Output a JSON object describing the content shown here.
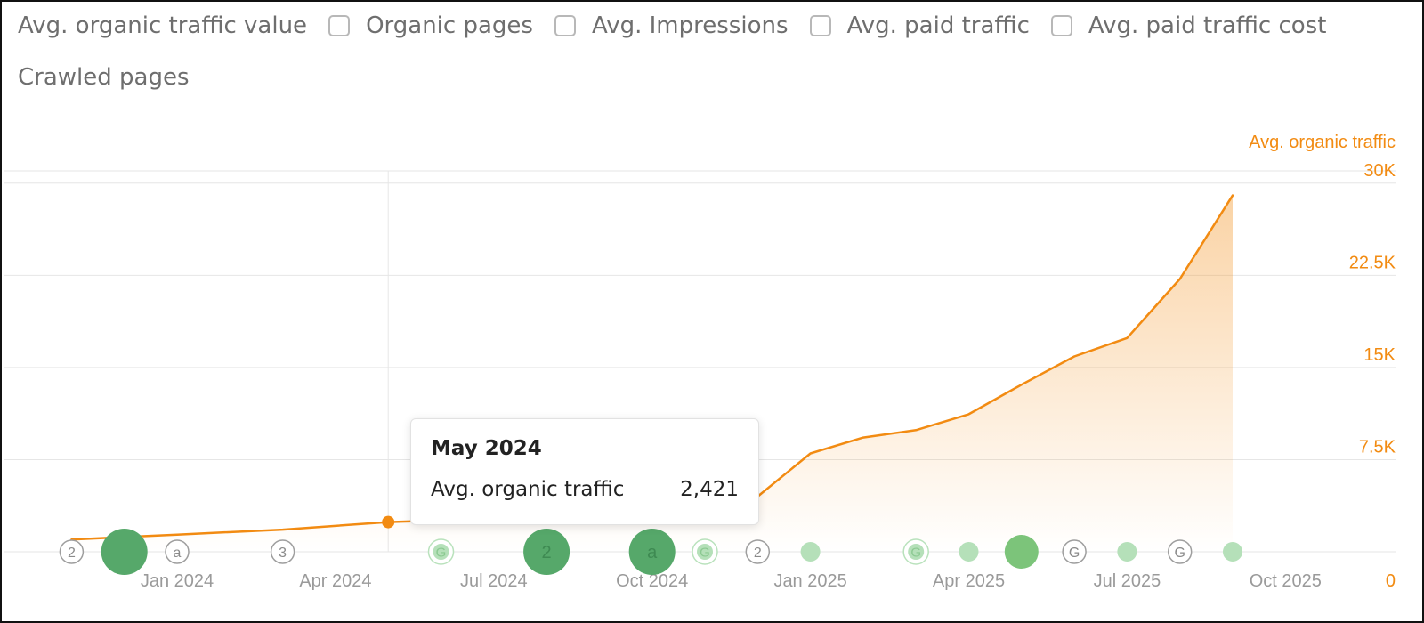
{
  "toggles": [
    {
      "label": "Avg. organic traffic value",
      "checked": null
    },
    {
      "label": "Organic pages",
      "checked": false
    },
    {
      "label": "Avg. Impressions",
      "checked": false
    },
    {
      "label": "Avg. paid traffic",
      "checked": false
    },
    {
      "label": "Avg. paid traffic cost",
      "checked": false
    },
    {
      "label": "Crawled pages",
      "checked": null
    }
  ],
  "colors": {
    "line": "#f28b12",
    "axis_text": "#f28b12",
    "tick_text": "#9a9a9a",
    "grid": "#e6e6e6",
    "marker_dark": "#56a86a",
    "marker_light": "#b5e0b9",
    "marker_mid": "#7cc47a"
  },
  "tooltip": {
    "title": "May 2024",
    "label": "Avg. organic traffic",
    "value": "2,421"
  },
  "chart_data": {
    "type": "area",
    "title": "",
    "ylabel": "Avg. organic traffic",
    "y_axis_position": "right",
    "ylim": [
      0,
      31000
    ],
    "yticks": [
      {
        "value": 0,
        "label": "0"
      },
      {
        "value": 7500,
        "label": "7.5K"
      },
      {
        "value": 15000,
        "label": "15K"
      },
      {
        "value": 22500,
        "label": "22.5K"
      },
      {
        "value": 30000,
        "label": "30K"
      }
    ],
    "xticks": [
      {
        "date": "2024-01",
        "label": "Jan 2024"
      },
      {
        "date": "2024-04",
        "label": "Apr 2024"
      },
      {
        "date": "2024-07",
        "label": "Jul 2024"
      },
      {
        "date": "2024-10",
        "label": "Oct 2024"
      },
      {
        "date": "2025-01",
        "label": "Jan 2025"
      },
      {
        "date": "2025-04",
        "label": "Apr 2025"
      },
      {
        "date": "2025-07",
        "label": "Jul 2025"
      },
      {
        "date": "2025-10",
        "label": "Oct 2025"
      }
    ],
    "grid": true,
    "series": [
      {
        "name": "Avg. organic traffic",
        "points": [
          {
            "date": "2023-11",
            "y": 1000
          },
          {
            "date": "2024-01",
            "y": 1400
          },
          {
            "date": "2024-03",
            "y": 1800
          },
          {
            "date": "2024-05",
            "y": 2421
          },
          {
            "date": "2024-07",
            "y": 2700
          },
          {
            "date": "2024-09",
            "y": 2900
          },
          {
            "date": "2024-11",
            "y": 3200
          },
          {
            "date": "2024-12",
            "y": 4500
          },
          {
            "date": "2025-01",
            "y": 8000
          },
          {
            "date": "2025-02",
            "y": 9300
          },
          {
            "date": "2025-03",
            "y": 9900
          },
          {
            "date": "2025-04",
            "y": 11200
          },
          {
            "date": "2025-05",
            "y": 13600
          },
          {
            "date": "2025-06",
            "y": 15900
          },
          {
            "date": "2025-07",
            "y": 17400
          },
          {
            "date": "2025-08",
            "y": 22200
          },
          {
            "date": "2025-09",
            "y": 29000
          }
        ]
      }
    ],
    "highlight": {
      "date": "2024-05"
    },
    "annotations": [
      {
        "date": "2023-11",
        "kind": "outline",
        "text": "2"
      },
      {
        "date": "2023-12",
        "kind": "dark-large",
        "text": ""
      },
      {
        "date": "2024-01",
        "kind": "outline",
        "text": "a"
      },
      {
        "date": "2024-03",
        "kind": "outline",
        "text": "3"
      },
      {
        "date": "2024-06",
        "kind": "g-light",
        "text": "G"
      },
      {
        "date": "2024-08",
        "kind": "dark-large",
        "text": "2"
      },
      {
        "date": "2024-10",
        "kind": "dark-large",
        "text": "a"
      },
      {
        "date": "2024-11",
        "kind": "g-light",
        "text": "G"
      },
      {
        "date": "2024-12",
        "kind": "outline",
        "text": "2"
      },
      {
        "date": "2025-01",
        "kind": "light",
        "text": ""
      },
      {
        "date": "2025-03",
        "kind": "g-light",
        "text": "G"
      },
      {
        "date": "2025-04",
        "kind": "light",
        "text": ""
      },
      {
        "date": "2025-05",
        "kind": "mid",
        "text": ""
      },
      {
        "date": "2025-06",
        "kind": "outline",
        "text": "G"
      },
      {
        "date": "2025-07",
        "kind": "light",
        "text": ""
      },
      {
        "date": "2025-08",
        "kind": "outline",
        "text": "G"
      },
      {
        "date": "2025-09",
        "kind": "light",
        "text": ""
      }
    ]
  }
}
